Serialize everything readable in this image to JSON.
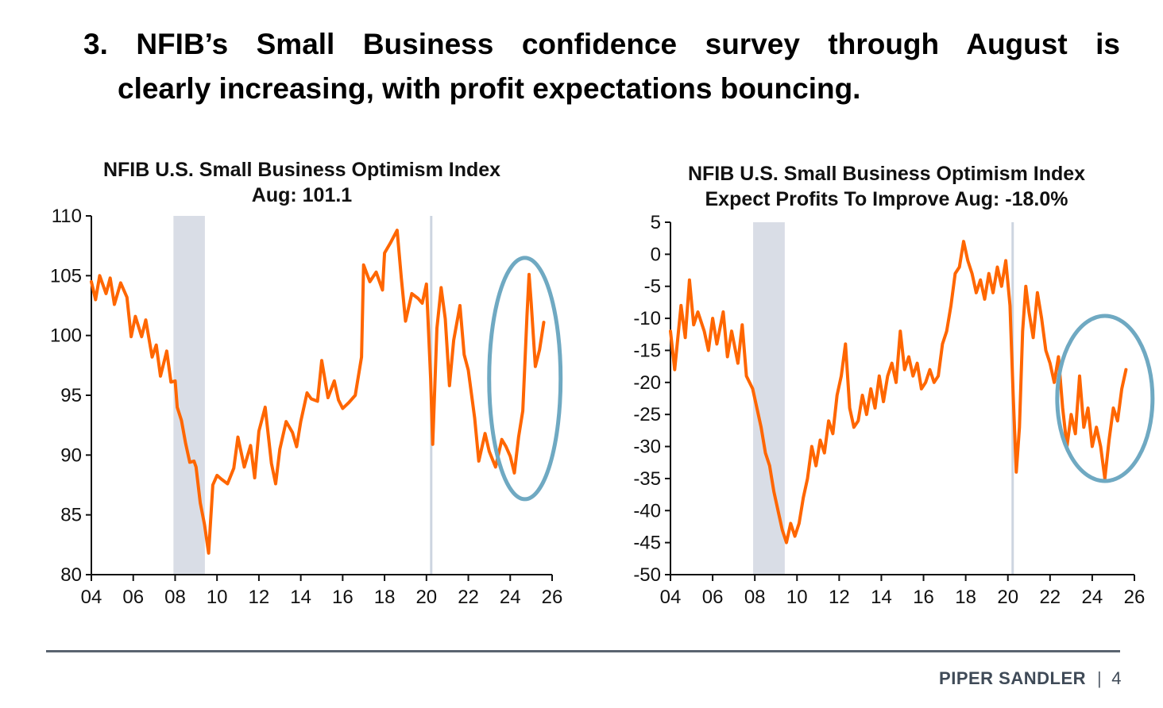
{
  "slide": {
    "title_line1": "3. NFIB’s Small Business confidence survey through August is",
    "title_line2": "clearly increasing, with profit expectations bouncing."
  },
  "footer": {
    "brand": "PIPER SANDLER",
    "separator": "|",
    "page": "4"
  },
  "colors": {
    "line": "#ff6600",
    "recession": "#d9dde6",
    "circle": "#6fa9c2",
    "covid_line": "#cdd5e0",
    "footer_rule": "#5a6470"
  },
  "chart_data": [
    {
      "type": "line",
      "title": "NFIB U.S. Small Business Optimism Index",
      "subtitle": "Aug: 101.1",
      "xlabel": "",
      "ylabel": "",
      "xlim": [
        2004,
        2026
      ],
      "ylim": [
        80,
        110
      ],
      "xticks": [
        "04",
        "06",
        "08",
        "10",
        "12",
        "14",
        "16",
        "18",
        "20",
        "22",
        "24",
        "26"
      ],
      "yticks": [
        "80",
        "85",
        "90",
        "95",
        "100",
        "105",
        "110"
      ],
      "shaded_periods": [
        [
          2007.92,
          2009.42
        ],
        [
          2020.17,
          2020.25
        ]
      ],
      "highlight_circle": {
        "x": 2024.7,
        "y": 96.4
      },
      "series": [
        {
          "values": [
            [
              2004.0,
              104.5
            ],
            [
              2004.2,
              103.0
            ],
            [
              2004.4,
              105.0
            ],
            [
              2004.7,
              103.5
            ],
            [
              2004.9,
              104.8
            ],
            [
              2005.1,
              102.6
            ],
            [
              2005.4,
              104.4
            ],
            [
              2005.7,
              103.2
            ],
            [
              2005.9,
              99.9
            ],
            [
              2006.1,
              101.6
            ],
            [
              2006.4,
              99.9
            ],
            [
              2006.6,
              101.3
            ],
            [
              2006.9,
              98.2
            ],
            [
              2007.1,
              99.2
            ],
            [
              2007.3,
              96.6
            ],
            [
              2007.6,
              98.7
            ],
            [
              2007.8,
              96.1
            ],
            [
              2008.0,
              96.2
            ],
            [
              2008.1,
              94.0
            ],
            [
              2008.3,
              92.9
            ],
            [
              2008.5,
              91.0
            ],
            [
              2008.7,
              89.4
            ],
            [
              2008.9,
              89.5
            ],
            [
              2009.0,
              89.0
            ],
            [
              2009.2,
              86.0
            ],
            [
              2009.4,
              84.2
            ],
            [
              2009.6,
              81.8
            ],
            [
              2009.8,
              87.5
            ],
            [
              2010.0,
              88.3
            ],
            [
              2010.2,
              88.0
            ],
            [
              2010.5,
              87.6
            ],
            [
              2010.8,
              88.9
            ],
            [
              2011.0,
              91.5
            ],
            [
              2011.3,
              89.0
            ],
            [
              2011.6,
              90.8
            ],
            [
              2011.8,
              88.1
            ],
            [
              2012.0,
              92.0
            ],
            [
              2012.3,
              94.0
            ],
            [
              2012.6,
              89.3
            ],
            [
              2012.8,
              87.6
            ],
            [
              2013.0,
              90.5
            ],
            [
              2013.3,
              92.8
            ],
            [
              2013.6,
              91.9
            ],
            [
              2013.8,
              90.7
            ],
            [
              2014.0,
              92.8
            ],
            [
              2014.3,
              95.2
            ],
            [
              2014.5,
              94.7
            ],
            [
              2014.8,
              94.5
            ],
            [
              2015.0,
              97.9
            ],
            [
              2015.3,
              94.8
            ],
            [
              2015.6,
              96.2
            ],
            [
              2015.8,
              94.6
            ],
            [
              2016.0,
              93.9
            ],
            [
              2016.3,
              94.4
            ],
            [
              2016.6,
              95.0
            ],
            [
              2016.9,
              98.2
            ],
            [
              2017.0,
              105.9
            ],
            [
              2017.3,
              104.5
            ],
            [
              2017.6,
              105.3
            ],
            [
              2017.9,
              103.8
            ],
            [
              2018.0,
              106.9
            ],
            [
              2018.3,
              107.8
            ],
            [
              2018.6,
              108.8
            ],
            [
              2018.8,
              104.8
            ],
            [
              2019.0,
              101.2
            ],
            [
              2019.3,
              103.5
            ],
            [
              2019.6,
              103.1
            ],
            [
              2019.8,
              102.7
            ],
            [
              2020.0,
              104.3
            ],
            [
              2020.2,
              96.4
            ],
            [
              2020.3,
              90.9
            ],
            [
              2020.5,
              100.6
            ],
            [
              2020.7,
              104.0
            ],
            [
              2020.9,
              101.4
            ],
            [
              2021.1,
              95.8
            ],
            [
              2021.3,
              99.6
            ],
            [
              2021.6,
              102.5
            ],
            [
              2021.8,
              98.4
            ],
            [
              2022.0,
              97.1
            ],
            [
              2022.3,
              93.1
            ],
            [
              2022.5,
              89.5
            ],
            [
              2022.8,
              91.8
            ],
            [
              2023.0,
              90.3
            ],
            [
              2023.3,
              89.0
            ],
            [
              2023.6,
              91.3
            ],
            [
              2023.8,
              90.7
            ],
            [
              2024.0,
              89.9
            ],
            [
              2024.2,
              88.5
            ],
            [
              2024.4,
              91.5
            ],
            [
              2024.6,
              93.7
            ],
            [
              2024.8,
              101.7
            ],
            [
              2024.9,
              105.1
            ],
            [
              2025.0,
              102.8
            ],
            [
              2025.2,
              97.4
            ],
            [
              2025.4,
              98.8
            ],
            [
              2025.6,
              101.1
            ]
          ]
        }
      ]
    },
    {
      "type": "line",
      "title": "NFIB U.S. Small Business Optimism Index",
      "subtitle": "Expect Profits To Improve  Aug: -18.0%",
      "xlabel": "",
      "ylabel": "",
      "xlim": [
        2004,
        2026
      ],
      "ylim": [
        -50,
        5
      ],
      "xticks": [
        "04",
        "06",
        "08",
        "10",
        "12",
        "14",
        "16",
        "18",
        "20",
        "22",
        "24",
        "26"
      ],
      "yticks": [
        "5",
        "0",
        "-5",
        "-10",
        "-15",
        "-20",
        "-25",
        "-30",
        "-35",
        "-40",
        "-45",
        "-50"
      ],
      "shaded_periods": [
        [
          2007.92,
          2009.42
        ],
        [
          2020.17,
          2020.25
        ]
      ],
      "highlight_circle": {
        "x": 2024.6,
        "y": -22.5
      },
      "series": [
        {
          "values": [
            [
              2004.0,
              -12
            ],
            [
              2004.2,
              -18
            ],
            [
              2004.5,
              -8
            ],
            [
              2004.7,
              -13
            ],
            [
              2004.9,
              -4
            ],
            [
              2005.1,
              -11
            ],
            [
              2005.3,
              -9
            ],
            [
              2005.6,
              -12
            ],
            [
              2005.8,
              -15
            ],
            [
              2006.0,
              -10
            ],
            [
              2006.2,
              -14
            ],
            [
              2006.5,
              -9
            ],
            [
              2006.7,
              -16
            ],
            [
              2006.9,
              -12
            ],
            [
              2007.2,
              -17
            ],
            [
              2007.4,
              -11
            ],
            [
              2007.6,
              -19
            ],
            [
              2007.9,
              -21
            ],
            [
              2008.1,
              -24
            ],
            [
              2008.3,
              -27
            ],
            [
              2008.5,
              -31
            ],
            [
              2008.7,
              -33
            ],
            [
              2008.9,
              -37
            ],
            [
              2009.1,
              -40
            ],
            [
              2009.3,
              -43
            ],
            [
              2009.5,
              -45
            ],
            [
              2009.7,
              -42
            ],
            [
              2009.9,
              -44
            ],
            [
              2010.1,
              -42
            ],
            [
              2010.3,
              -38
            ],
            [
              2010.5,
              -35
            ],
            [
              2010.7,
              -30
            ],
            [
              2010.9,
              -33
            ],
            [
              2011.1,
              -29
            ],
            [
              2011.3,
              -31
            ],
            [
              2011.5,
              -26
            ],
            [
              2011.7,
              -28
            ],
            [
              2011.9,
              -22
            ],
            [
              2012.1,
              -19
            ],
            [
              2012.3,
              -14
            ],
            [
              2012.5,
              -24
            ],
            [
              2012.7,
              -27
            ],
            [
              2012.9,
              -26
            ],
            [
              2013.1,
              -22
            ],
            [
              2013.3,
              -25
            ],
            [
              2013.5,
              -21
            ],
            [
              2013.7,
              -24
            ],
            [
              2013.9,
              -19
            ],
            [
              2014.1,
              -23
            ],
            [
              2014.3,
              -19
            ],
            [
              2014.5,
              -17
            ],
            [
              2014.7,
              -20
            ],
            [
              2014.9,
              -12
            ],
            [
              2015.1,
              -18
            ],
            [
              2015.3,
              -16
            ],
            [
              2015.5,
              -19
            ],
            [
              2015.7,
              -17
            ],
            [
              2015.9,
              -21
            ],
            [
              2016.1,
              -20
            ],
            [
              2016.3,
              -18
            ],
            [
              2016.5,
              -20
            ],
            [
              2016.7,
              -19
            ],
            [
              2016.9,
              -14
            ],
            [
              2017.1,
              -12
            ],
            [
              2017.3,
              -8
            ],
            [
              2017.5,
              -3
            ],
            [
              2017.7,
              -2
            ],
            [
              2017.9,
              2
            ],
            [
              2018.1,
              -1
            ],
            [
              2018.3,
              -3
            ],
            [
              2018.5,
              -6
            ],
            [
              2018.7,
              -4
            ],
            [
              2018.9,
              -7
            ],
            [
              2019.1,
              -3
            ],
            [
              2019.3,
              -6
            ],
            [
              2019.5,
              -2
            ],
            [
              2019.7,
              -5
            ],
            [
              2019.9,
              -1
            ],
            [
              2020.1,
              -8
            ],
            [
              2020.25,
              -22
            ],
            [
              2020.4,
              -34
            ],
            [
              2020.55,
              -27
            ],
            [
              2020.7,
              -12
            ],
            [
              2020.85,
              -5
            ],
            [
              2021.0,
              -9
            ],
            [
              2021.2,
              -13
            ],
            [
              2021.4,
              -6
            ],
            [
              2021.6,
              -10
            ],
            [
              2021.8,
              -15
            ],
            [
              2022.0,
              -17
            ],
            [
              2022.2,
              -20
            ],
            [
              2022.4,
              -16
            ],
            [
              2022.6,
              -24
            ],
            [
              2022.8,
              -30
            ],
            [
              2023.0,
              -25
            ],
            [
              2023.2,
              -28
            ],
            [
              2023.4,
              -19
            ],
            [
              2023.6,
              -27
            ],
            [
              2023.8,
              -24
            ],
            [
              2024.0,
              -30
            ],
            [
              2024.2,
              -27
            ],
            [
              2024.4,
              -30
            ],
            [
              2024.6,
              -35
            ],
            [
              2024.8,
              -29
            ],
            [
              2025.0,
              -24
            ],
            [
              2025.2,
              -26
            ],
            [
              2025.4,
              -21
            ],
            [
              2025.6,
              -18
            ]
          ]
        }
      ]
    }
  ]
}
